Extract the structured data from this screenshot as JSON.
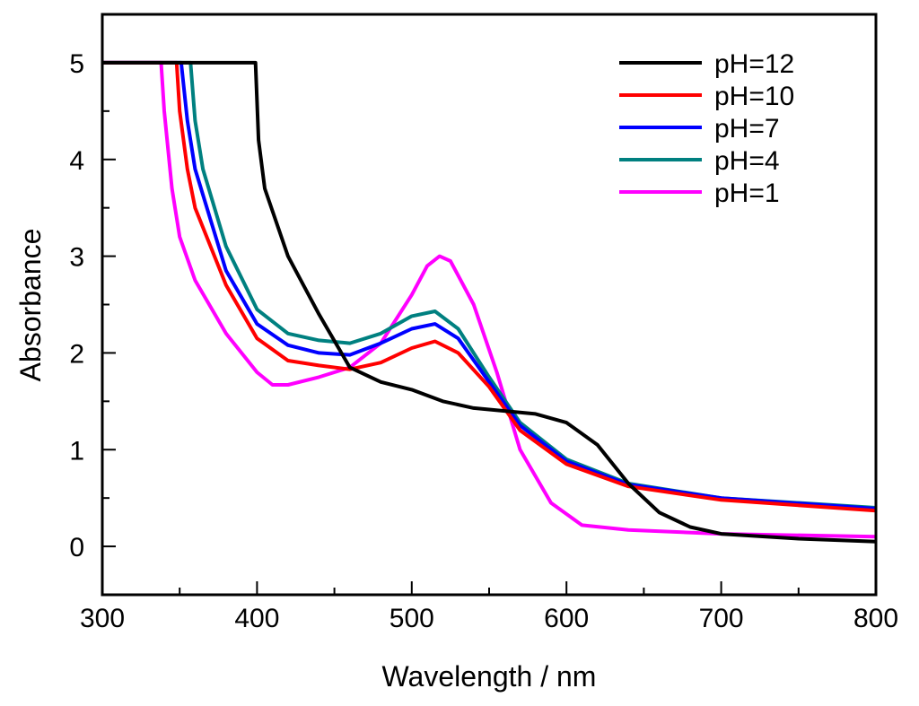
{
  "chart_data": {
    "type": "line",
    "title": "",
    "xlabel": "Wavelength / nm",
    "ylabel": "Absorbance",
    "xlim": [
      300,
      800
    ],
    "ylim": [
      -0.5,
      5.5
    ],
    "xticks": [
      300,
      400,
      500,
      600,
      700,
      800
    ],
    "yticks": [
      0,
      1,
      2,
      3,
      4,
      5
    ],
    "grid": false,
    "legend_position": "top-right",
    "series": [
      {
        "name": "pH=12",
        "color": "#000000",
        "x": [
          300,
          399,
          401,
          405,
          420,
          440,
          460,
          480,
          500,
          520,
          540,
          560,
          580,
          600,
          620,
          640,
          660,
          680,
          700,
          750,
          800
        ],
        "y": [
          5,
          5,
          4.2,
          3.7,
          3.0,
          2.4,
          1.85,
          1.7,
          1.62,
          1.5,
          1.43,
          1.4,
          1.37,
          1.28,
          1.05,
          0.65,
          0.35,
          0.2,
          0.13,
          0.08,
          0.05
        ]
      },
      {
        "name": "pH=10",
        "color": "#ff0000",
        "x": [
          300,
          348,
          350,
          355,
          360,
          380,
          400,
          420,
          440,
          460,
          480,
          500,
          515,
          530,
          550,
          570,
          600,
          640,
          700,
          800
        ],
        "y": [
          5,
          5,
          4.5,
          3.9,
          3.5,
          2.7,
          2.15,
          1.92,
          1.87,
          1.83,
          1.9,
          2.05,
          2.12,
          2.0,
          1.65,
          1.2,
          0.85,
          0.62,
          0.48,
          0.37
        ]
      },
      {
        "name": "pH=7",
        "color": "#0000ff",
        "x": [
          300,
          351,
          355,
          360,
          380,
          400,
          420,
          440,
          460,
          480,
          500,
          515,
          530,
          550,
          570,
          600,
          640,
          700,
          800
        ],
        "y": [
          5,
          5,
          4.4,
          3.9,
          2.85,
          2.3,
          2.08,
          2.0,
          1.98,
          2.1,
          2.25,
          2.3,
          2.15,
          1.7,
          1.25,
          0.88,
          0.64,
          0.5,
          0.39
        ]
      },
      {
        "name": "pH=4",
        "color": "#008080",
        "x": [
          300,
          357,
          360,
          365,
          380,
          400,
          420,
          440,
          460,
          480,
          500,
          515,
          530,
          550,
          570,
          600,
          640,
          700,
          800
        ],
        "y": [
          5,
          5,
          4.4,
          3.9,
          3.1,
          2.45,
          2.2,
          2.13,
          2.1,
          2.2,
          2.38,
          2.43,
          2.25,
          1.75,
          1.28,
          0.9,
          0.65,
          0.5,
          0.4
        ]
      },
      {
        "name": "pH=1",
        "color": "#ff00ff",
        "x": [
          300,
          338,
          340,
          345,
          350,
          360,
          380,
          400,
          410,
          420,
          440,
          460,
          480,
          500,
          510,
          518,
          525,
          540,
          555,
          570,
          590,
          610,
          640,
          700,
          800
        ],
        "y": [
          5,
          5,
          4.5,
          3.7,
          3.2,
          2.75,
          2.2,
          1.8,
          1.67,
          1.67,
          1.75,
          1.85,
          2.1,
          2.6,
          2.9,
          3.0,
          2.95,
          2.5,
          1.8,
          1.0,
          0.45,
          0.22,
          0.17,
          0.13,
          0.1
        ]
      }
    ]
  }
}
